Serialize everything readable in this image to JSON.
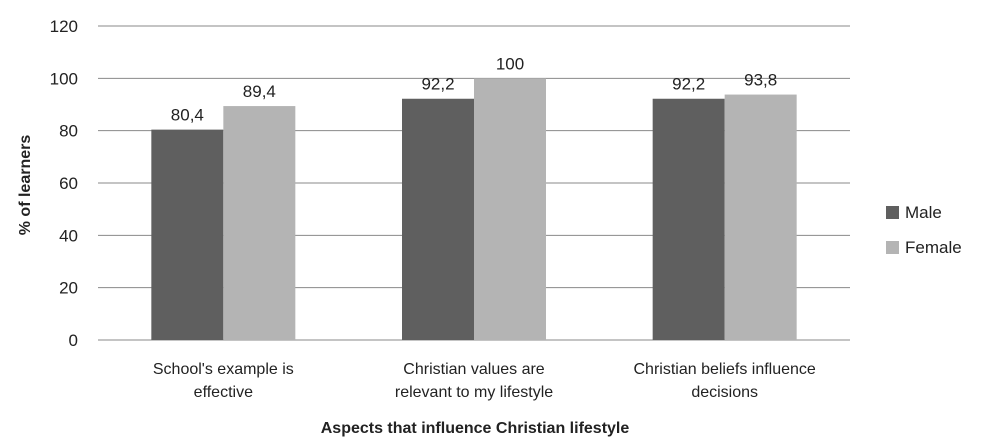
{
  "chart_data": {
    "type": "bar",
    "categories": [
      [
        "School's example is",
        "effective"
      ],
      [
        "Christian values are",
        "relevant to my lifestyle"
      ],
      [
        "Christian beliefs influence",
        "decisions"
      ]
    ],
    "series": [
      {
        "name": "Male",
        "values": [
          80.4,
          92.2,
          92.2
        ],
        "labels": [
          "80,4",
          "92,2",
          "92,2"
        ],
        "color": "#5f5f5f"
      },
      {
        "name": "Female",
        "values": [
          89.4,
          100,
          93.8
        ],
        "labels": [
          "89,4",
          "100",
          "93,8"
        ],
        "color": "#b4b4b4"
      }
    ],
    "xlabel": "Aspects that influence Christian lifestyle",
    "ylabel": "% of learners",
    "ylim": [
      0,
      120
    ],
    "yticks": [
      0,
      20,
      40,
      60,
      80,
      100,
      120
    ],
    "grid": true,
    "legend_position": "right"
  }
}
